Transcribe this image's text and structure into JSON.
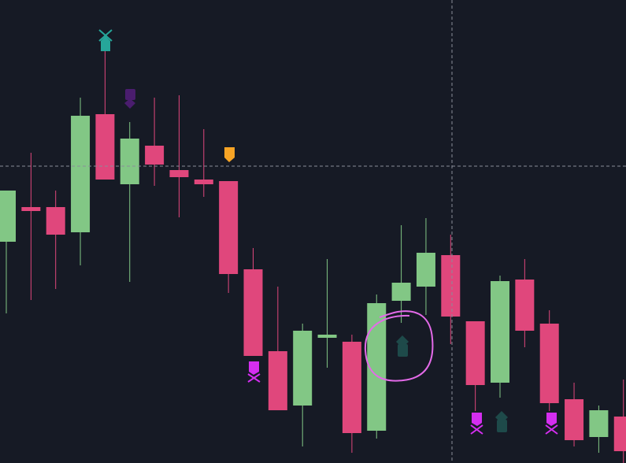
{
  "chart_data": {
    "type": "candlestick",
    "open": [
      281,
      325,
      325,
      293,
      443,
      354,
      403,
      372,
      360,
      358,
      246,
      142,
      73,
      159,
      154,
      41,
      206,
      224,
      264,
      180,
      102,
      233,
      177,
      81,
      33,
      59
    ],
    "high": [
      346,
      394,
      346,
      464,
      528,
      433,
      464,
      467,
      424,
      358,
      273,
      224,
      177,
      259,
      163,
      214,
      302,
      311,
      290,
      180,
      238,
      259,
      194,
      102,
      73,
      106
    ],
    "low": [
      190,
      207,
      221,
      251,
      360,
      230,
      352,
      312,
      338,
      216,
      136,
      67,
      21,
      121,
      13,
      31,
      178,
      188,
      151,
      66,
      83,
      147,
      66,
      21,
      13,
      0
    ],
    "close": [
      346,
      320,
      290,
      441,
      360,
      412,
      379,
      363,
      354,
      240,
      136,
      67,
      168,
      163,
      38,
      203,
      229,
      267,
      186,
      99,
      231,
      168,
      76,
      29,
      67,
      15
    ],
    "up_color": "#82c785",
    "down_color": "#e0477c",
    "ylim": [
      0,
      588
    ]
  }
}
